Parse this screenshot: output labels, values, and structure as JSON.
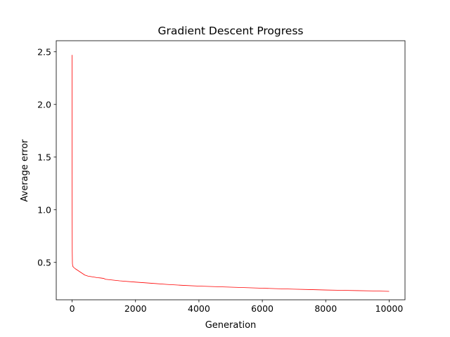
{
  "chart_data": {
    "type": "line",
    "title": "Gradient Descent Progress",
    "xlabel": "Generation",
    "ylabel": "Average error",
    "xlim": [
      -500,
      10500
    ],
    "ylim": [
      0.145,
      2.605
    ],
    "xticks": [
      0,
      2000,
      4000,
      6000,
      8000,
      10000
    ],
    "xtick_labels": [
      "0",
      "2000",
      "4000",
      "6000",
      "8000",
      "10000"
    ],
    "yticks": [
      0.5,
      1.0,
      1.5,
      2.0,
      2.5
    ],
    "ytick_labels": [
      "0.5",
      "1.0",
      "1.5",
      "2.0",
      "2.5"
    ],
    "grid": false,
    "legend": "none",
    "series": [
      {
        "color": "#ff0000",
        "x": [
          0,
          1,
          2,
          5,
          10,
          20,
          40,
          60,
          100,
          150,
          200,
          300,
          400,
          500,
          600,
          700,
          800,
          900,
          1000,
          1050,
          1200,
          1500,
          2000,
          2500,
          3000,
          3500,
          4000,
          4500,
          5000,
          5500,
          6000,
          6500,
          7000,
          7500,
          8000,
          8500,
          9000,
          9500,
          10000
        ],
        "y": [
          2.47,
          1.5,
          0.95,
          0.6,
          0.49,
          0.465,
          0.455,
          0.45,
          0.44,
          0.43,
          0.42,
          0.4,
          0.38,
          0.37,
          0.365,
          0.36,
          0.355,
          0.352,
          0.348,
          0.34,
          0.335,
          0.325,
          0.313,
          0.302,
          0.291,
          0.282,
          0.275,
          0.27,
          0.265,
          0.26,
          0.255,
          0.25,
          0.246,
          0.242,
          0.238,
          0.235,
          0.232,
          0.229,
          0.225
        ]
      }
    ]
  }
}
